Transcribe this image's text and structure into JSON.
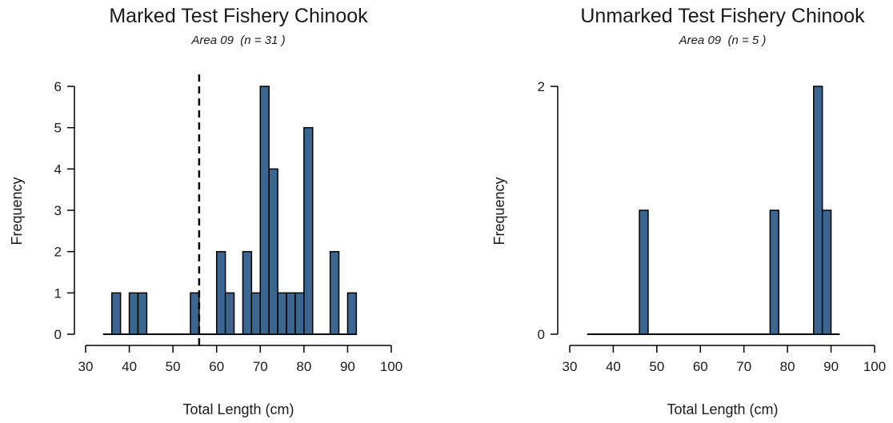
{
  "chart_data": [
    {
      "type": "bar",
      "title": "Marked Test Fishery Chinook",
      "subtitle": "Area 09  (n = 31 )",
      "xlabel": "Total Length (cm)",
      "ylabel": "Frequency",
      "xlim": [
        30,
        100
      ],
      "ylim": [
        0,
        6
      ],
      "xticks": [
        "30",
        "40",
        "50",
        "60",
        "70",
        "80",
        "90",
        "100"
      ],
      "yticks": [
        "0",
        "1",
        "2",
        "3",
        "4",
        "5",
        "6"
      ],
      "bar_color": "#3B6690",
      "baseline": [
        34,
        92
      ],
      "bin_width": 2,
      "bins": [
        {
          "x": 36,
          "count": 1
        },
        {
          "x": 40,
          "count": 1
        },
        {
          "x": 42,
          "count": 1
        },
        {
          "x": 54,
          "count": 1
        },
        {
          "x": 60,
          "count": 2
        },
        {
          "x": 62,
          "count": 1
        },
        {
          "x": 66,
          "count": 2
        },
        {
          "x": 68,
          "count": 1
        },
        {
          "x": 70,
          "count": 6
        },
        {
          "x": 72,
          "count": 4
        },
        {
          "x": 74,
          "count": 1
        },
        {
          "x": 76,
          "count": 1
        },
        {
          "x": 78,
          "count": 1
        },
        {
          "x": 80,
          "count": 5
        },
        {
          "x": 86,
          "count": 2
        },
        {
          "x": 90,
          "count": 1
        }
      ],
      "reference_line": 56
    },
    {
      "type": "bar",
      "title": "Unmarked Test Fishery Chinook",
      "subtitle": "Area 09  (n = 5 )",
      "xlabel": "Total Length (cm)",
      "ylabel": "Frequency",
      "xlim": [
        30,
        100
      ],
      "ylim": [
        0,
        2
      ],
      "xticks": [
        "30",
        "40",
        "50",
        "60",
        "70",
        "80",
        "90",
        "100"
      ],
      "yticks": [
        "0",
        "2"
      ],
      "bar_color": "#3B6690",
      "baseline": [
        34,
        92
      ],
      "bin_width": 2,
      "bins": [
        {
          "x": 46,
          "count": 1
        },
        {
          "x": 76,
          "count": 1
        },
        {
          "x": 86,
          "count": 2
        },
        {
          "x": 88,
          "count": 1
        }
      ]
    }
  ]
}
